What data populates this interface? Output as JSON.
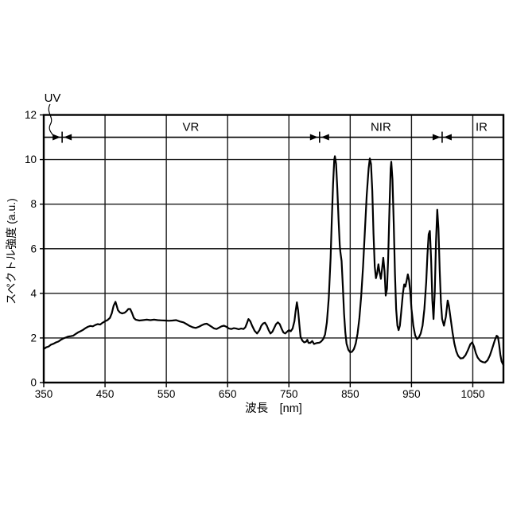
{
  "chart_data": {
    "type": "line",
    "title": "",
    "xlabel": "波長　[nm]",
    "ylabel": "スペクトル強度 (a.u.)",
    "xlim": [
      350,
      1100
    ],
    "ylim": [
      0,
      12
    ],
    "x_ticks": [
      350,
      450,
      550,
      650,
      750,
      850,
      950,
      1050
    ],
    "y_ticks": [
      0,
      2,
      4,
      6,
      8,
      10,
      12
    ],
    "grid": true,
    "legend": "none",
    "line_color": "#000000",
    "grid_color": "#1a1a1a",
    "annotations": {
      "band_arrow_y": 11,
      "band_boundaries_nm": [
        380,
        800,
        1000
      ],
      "bands": [
        {
          "label": "UV",
          "from": 350,
          "to": 380,
          "placement": "outside-top-left"
        },
        {
          "label": "VR",
          "from": 380,
          "to": 800,
          "placement": "inside"
        },
        {
          "label": "NIR",
          "from": 800,
          "to": 1000,
          "placement": "inside"
        },
        {
          "label": "IR",
          "from": 1000,
          "to": 1100,
          "placement": "inside",
          "dx": 11
        }
      ]
    },
    "series": [
      {
        "name": "spectrum",
        "points": [
          [
            350,
            1.5
          ],
          [
            354,
            1.58
          ],
          [
            358,
            1.62
          ],
          [
            362,
            1.7
          ],
          [
            366,
            1.74
          ],
          [
            370,
            1.8
          ],
          [
            374,
            1.84
          ],
          [
            378,
            1.92
          ],
          [
            382,
            1.98
          ],
          [
            386,
            2.02
          ],
          [
            390,
            2.06
          ],
          [
            394,
            2.08
          ],
          [
            398,
            2.1
          ],
          [
            402,
            2.18
          ],
          [
            406,
            2.25
          ],
          [
            410,
            2.3
          ],
          [
            414,
            2.36
          ],
          [
            418,
            2.44
          ],
          [
            422,
            2.5
          ],
          [
            426,
            2.54
          ],
          [
            430,
            2.52
          ],
          [
            434,
            2.58
          ],
          [
            438,
            2.62
          ],
          [
            442,
            2.6
          ],
          [
            446,
            2.68
          ],
          [
            450,
            2.75
          ],
          [
            454,
            2.8
          ],
          [
            458,
            2.9
          ],
          [
            461,
            3.1
          ],
          [
            464,
            3.45
          ],
          [
            467,
            3.62
          ],
          [
            469,
            3.45
          ],
          [
            471,
            3.25
          ],
          [
            474,
            3.15
          ],
          [
            478,
            3.1
          ],
          [
            482,
            3.13
          ],
          [
            485,
            3.2
          ],
          [
            488,
            3.3
          ],
          [
            491,
            3.3
          ],
          [
            494,
            3.12
          ],
          [
            497,
            2.9
          ],
          [
            500,
            2.82
          ],
          [
            506,
            2.78
          ],
          [
            512,
            2.8
          ],
          [
            518,
            2.82
          ],
          [
            524,
            2.8
          ],
          [
            530,
            2.82
          ],
          [
            536,
            2.8
          ],
          [
            542,
            2.79
          ],
          [
            548,
            2.78
          ],
          [
            554,
            2.77
          ],
          [
            560,
            2.78
          ],
          [
            566,
            2.8
          ],
          [
            572,
            2.74
          ],
          [
            578,
            2.7
          ],
          [
            583,
            2.62
          ],
          [
            588,
            2.54
          ],
          [
            593,
            2.48
          ],
          [
            598,
            2.45
          ],
          [
            603,
            2.5
          ],
          [
            608,
            2.57
          ],
          [
            612,
            2.62
          ],
          [
            616,
            2.64
          ],
          [
            620,
            2.57
          ],
          [
            624,
            2.5
          ],
          [
            628,
            2.43
          ],
          [
            632,
            2.4
          ],
          [
            636,
            2.46
          ],
          [
            640,
            2.52
          ],
          [
            644,
            2.55
          ],
          [
            648,
            2.5
          ],
          [
            652,
            2.43
          ],
          [
            656,
            2.4
          ],
          [
            660,
            2.44
          ],
          [
            664,
            2.42
          ],
          [
            668,
            2.39
          ],
          [
            672,
            2.42
          ],
          [
            676,
            2.4
          ],
          [
            679,
            2.48
          ],
          [
            682,
            2.7
          ],
          [
            684,
            2.85
          ],
          [
            687,
            2.75
          ],
          [
            690,
            2.55
          ],
          [
            694,
            2.32
          ],
          [
            698,
            2.2
          ],
          [
            702,
            2.35
          ],
          [
            705,
            2.55
          ],
          [
            708,
            2.65
          ],
          [
            711,
            2.68
          ],
          [
            714,
            2.55
          ],
          [
            717,
            2.35
          ],
          [
            720,
            2.2
          ],
          [
            723,
            2.28
          ],
          [
            726,
            2.45
          ],
          [
            729,
            2.62
          ],
          [
            732,
            2.7
          ],
          [
            735,
            2.62
          ],
          [
            738,
            2.42
          ],
          [
            741,
            2.25
          ],
          [
            744,
            2.2
          ],
          [
            747,
            2.28
          ],
          [
            750,
            2.35
          ],
          [
            753,
            2.3
          ],
          [
            756,
            2.42
          ],
          [
            759,
            2.75
          ],
          [
            761,
            3.2
          ],
          [
            763,
            3.6
          ],
          [
            765,
            3.25
          ],
          [
            767,
            2.6
          ],
          [
            769,
            2.05
          ],
          [
            772,
            1.88
          ],
          [
            775,
            1.8
          ],
          [
            778,
            1.83
          ],
          [
            780,
            1.92
          ],
          [
            782,
            1.78
          ],
          [
            785,
            1.78
          ],
          [
            788,
            1.86
          ],
          [
            791,
            1.73
          ],
          [
            794,
            1.76
          ],
          [
            797,
            1.78
          ],
          [
            800,
            1.79
          ],
          [
            803,
            1.85
          ],
          [
            806,
            1.95
          ],
          [
            809,
            2.15
          ],
          [
            812,
            2.7
          ],
          [
            815,
            3.8
          ],
          [
            818,
            5.6
          ],
          [
            820,
            7.3
          ],
          [
            822,
            8.9
          ],
          [
            824,
            10.0
          ],
          [
            825,
            10.15
          ],
          [
            827,
            9.8
          ],
          [
            829,
            8.7
          ],
          [
            831,
            7.3
          ],
          [
            833,
            6.15
          ],
          [
            834,
            5.85
          ],
          [
            836,
            5.45
          ],
          [
            838,
            4.3
          ],
          [
            840,
            3.1
          ],
          [
            842,
            2.25
          ],
          [
            844,
            1.75
          ],
          [
            847,
            1.47
          ],
          [
            850,
            1.36
          ],
          [
            853,
            1.38
          ],
          [
            856,
            1.5
          ],
          [
            859,
            1.75
          ],
          [
            862,
            2.2
          ],
          [
            865,
            2.9
          ],
          [
            868,
            3.9
          ],
          [
            871,
            5.2
          ],
          [
            874,
            6.8
          ],
          [
            877,
            8.4
          ],
          [
            880,
            9.6
          ],
          [
            882,
            10.05
          ],
          [
            884,
            9.8
          ],
          [
            886,
            8.6
          ],
          [
            888,
            6.7
          ],
          [
            890,
            5.2
          ],
          [
            892,
            4.68
          ],
          [
            894,
            4.9
          ],
          [
            896,
            5.3
          ],
          [
            898,
            4.95
          ],
          [
            900,
            4.65
          ],
          [
            902,
            5.1
          ],
          [
            904,
            5.6
          ],
          [
            906,
            5.0
          ],
          [
            908,
            3.9
          ],
          [
            910,
            4.2
          ],
          [
            912,
            5.6
          ],
          [
            914,
            7.8
          ],
          [
            916,
            9.6
          ],
          [
            917,
            9.9
          ],
          [
            919,
            9.1
          ],
          [
            921,
            7.1
          ],
          [
            923,
            4.9
          ],
          [
            925,
            3.3
          ],
          [
            927,
            2.55
          ],
          [
            929,
            2.35
          ],
          [
            931,
            2.55
          ],
          [
            933,
            3.1
          ],
          [
            936,
            4.0
          ],
          [
            938,
            4.4
          ],
          [
            940,
            4.3
          ],
          [
            942,
            4.55
          ],
          [
            944,
            4.85
          ],
          [
            946,
            4.6
          ],
          [
            948,
            4.05
          ],
          [
            950,
            3.3
          ],
          [
            953,
            2.55
          ],
          [
            956,
            2.12
          ],
          [
            959,
            1.95
          ],
          [
            962,
            2.02
          ],
          [
            965,
            2.2
          ],
          [
            968,
            2.55
          ],
          [
            971,
            3.3
          ],
          [
            974,
            4.5
          ],
          [
            976,
            5.7
          ],
          [
            978,
            6.65
          ],
          [
            980,
            6.8
          ],
          [
            982,
            5.5
          ],
          [
            984,
            3.7
          ],
          [
            986,
            2.85
          ],
          [
            988,
            4.1
          ],
          [
            990,
            6.3
          ],
          [
            992,
            7.75
          ],
          [
            994,
            6.9
          ],
          [
            996,
            5.0
          ],
          [
            998,
            3.6
          ],
          [
            1000,
            2.85
          ],
          [
            1003,
            2.55
          ],
          [
            1006,
            2.95
          ],
          [
            1009,
            3.68
          ],
          [
            1011,
            3.45
          ],
          [
            1014,
            2.85
          ],
          [
            1017,
            2.25
          ],
          [
            1020,
            1.75
          ],
          [
            1023,
            1.4
          ],
          [
            1026,
            1.2
          ],
          [
            1030,
            1.08
          ],
          [
            1034,
            1.1
          ],
          [
            1038,
            1.22
          ],
          [
            1042,
            1.45
          ],
          [
            1046,
            1.72
          ],
          [
            1049,
            1.8
          ],
          [
            1052,
            1.62
          ],
          [
            1055,
            1.32
          ],
          [
            1058,
            1.12
          ],
          [
            1062,
            0.98
          ],
          [
            1066,
            0.92
          ],
          [
            1070,
            0.9
          ],
          [
            1074,
            1.0
          ],
          [
            1078,
            1.22
          ],
          [
            1082,
            1.55
          ],
          [
            1086,
            1.9
          ],
          [
            1089,
            2.1
          ],
          [
            1091,
            2.05
          ],
          [
            1093,
            1.7
          ],
          [
            1095,
            1.25
          ],
          [
            1097,
            0.95
          ],
          [
            1100,
            0.78
          ]
        ]
      }
    ]
  }
}
